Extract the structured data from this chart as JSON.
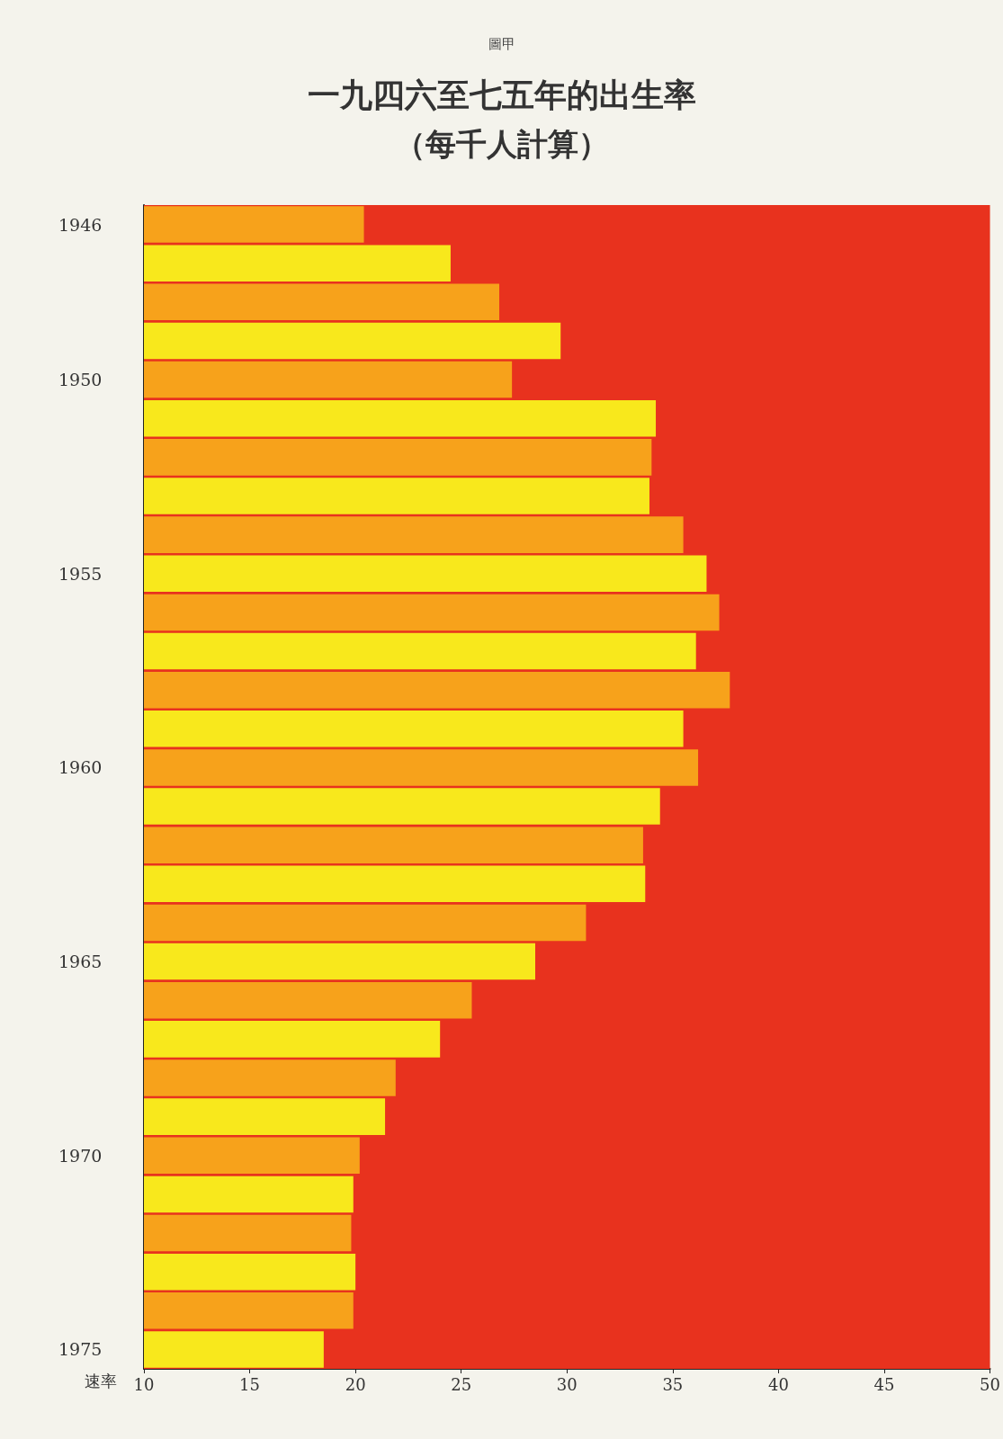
{
  "chart_data": {
    "type": "bar",
    "orientation": "horizontal",
    "title": "一九四六至七五年的出生率",
    "subtitle": "（每千人計算）",
    "annotations": [
      "圖甲"
    ],
    "xlabel": "速率",
    "categories": [
      "1946",
      null,
      null,
      null,
      "1950",
      null,
      null,
      null,
      null,
      "1955",
      null,
      null,
      null,
      null,
      "1960",
      null,
      null,
      null,
      null,
      "1965",
      null,
      null,
      null,
      null,
      "1970",
      null,
      null,
      null,
      null,
      "1975"
    ],
    "values": [
      20.4,
      24.5,
      26.8,
      29.7,
      27.4,
      34.2,
      34.0,
      33.9,
      35.5,
      36.6,
      37.2,
      36.1,
      37.7,
      35.5,
      36.2,
      34.4,
      33.6,
      33.7,
      30.9,
      28.5,
      25.5,
      24.0,
      21.9,
      21.4,
      20.2,
      19.9,
      19.8,
      20.0,
      19.9,
      18.5
    ],
    "colors": [
      "#f7a21b",
      "#f8e81c",
      "#f7a21b",
      "#f8e81c",
      "#f7a21b",
      "#f8e81c",
      "#f7a21b",
      "#f8e81c",
      "#f7a21b",
      "#f8e81c",
      "#f7a21b",
      "#f8e81c",
      "#f7a21b",
      "#f8e81c",
      "#f7a21b",
      "#f8e81c",
      "#f7a21b",
      "#f8e81c",
      "#f7a21b",
      "#f8e81c",
      "#f7a21b",
      "#f8e81c",
      "#f7a21b",
      "#f8e81c",
      "#f7a21b",
      "#f8e81c",
      "#f7a21b",
      "#f8e81c",
      "#f7a21b",
      "#f8e81c"
    ],
    "bands": [
      {
        "axis": "x",
        "from": 10,
        "to": 50,
        "color": "#e8321e"
      }
    ],
    "xlim": [
      10,
      50
    ],
    "xticks": [
      10,
      15,
      20,
      25,
      30,
      35,
      40,
      45,
      50
    ],
    "grid": false
  }
}
